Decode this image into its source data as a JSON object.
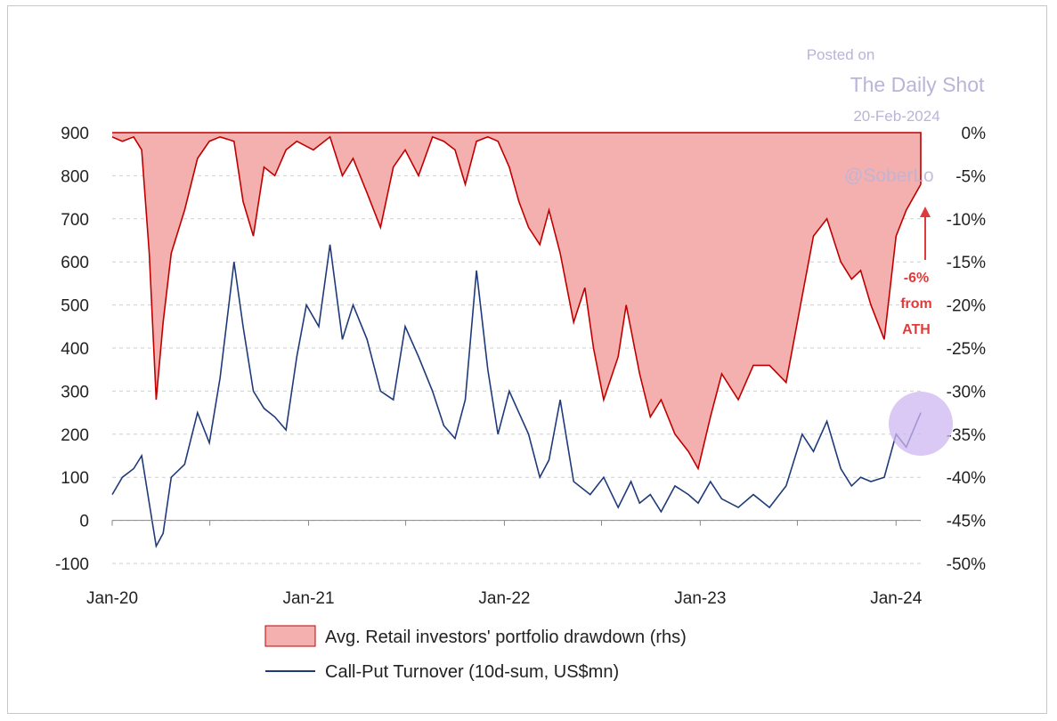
{
  "watermark": {
    "line1": "Posted on",
    "line2": "The Daily Shot",
    "line3": "20-Feb-2024",
    "handle": "@SoberLo"
  },
  "annotation": {
    "line1": "-6%",
    "line2": "from",
    "line3": "ATH"
  },
  "colors": {
    "drawdown_fill": "#f4b0ae",
    "drawdown_line": "#c00000",
    "turnover_line": "#1f3a7a",
    "grid": "#cfcfcf",
    "annotation": "#e03b3b",
    "highlight_circle": "#cdb7f0"
  },
  "chart_data": {
    "type": "line",
    "x_tick_labels": [
      "Jan-20",
      "Jan-21",
      "Jan-22",
      "Jan-23",
      "Jan-24"
    ],
    "x_range": [
      "2020-01-01",
      "2024-02-16"
    ],
    "y_left": {
      "range": [
        -100,
        900
      ],
      "ticks": [
        "900",
        "800",
        "700",
        "600",
        "500",
        "400",
        "300",
        "200",
        "100",
        "0",
        "-100"
      ]
    },
    "y_right": {
      "range": [
        -50,
        0
      ],
      "unit": "%",
      "ticks": [
        "0%",
        "-5%",
        "-10%",
        "-15%",
        "-20%",
        "-25%",
        "-30%",
        "-35%",
        "-40%",
        "-45%",
        "-50%"
      ]
    },
    "series": [
      {
        "name": "Avg. Retail investors' portfolio drawdown (rhs)",
        "kind": "area",
        "axis": "right",
        "x": [
          "2020-01-01",
          "2020-01-20",
          "2020-02-10",
          "2020-02-25",
          "2020-03-10",
          "2020-03-23",
          "2020-04-05",
          "2020-04-20",
          "2020-05-15",
          "2020-06-08",
          "2020-06-30",
          "2020-07-20",
          "2020-08-15",
          "2020-09-01",
          "2020-09-20",
          "2020-10-10",
          "2020-10-30",
          "2020-11-20",
          "2020-12-10",
          "2021-01-10",
          "2021-02-10",
          "2021-03-05",
          "2021-03-25",
          "2021-04-20",
          "2021-05-15",
          "2021-06-08",
          "2021-06-30",
          "2021-07-25",
          "2021-08-20",
          "2021-09-10",
          "2021-10-01",
          "2021-10-20",
          "2021-11-10",
          "2021-12-01",
          "2021-12-20",
          "2022-01-10",
          "2022-01-28",
          "2022-02-15",
          "2022-03-08",
          "2022-03-25",
          "2022-04-15",
          "2022-05-10",
          "2022-05-31",
          "2022-06-16",
          "2022-07-05",
          "2022-08-01",
          "2022-08-16",
          "2022-09-10",
          "2022-09-30",
          "2022-10-20",
          "2022-11-15",
          "2022-12-10",
          "2022-12-28",
          "2023-01-20",
          "2023-02-10",
          "2023-03-13",
          "2023-04-10",
          "2023-05-10",
          "2023-06-10",
          "2023-07-10",
          "2023-07-31",
          "2023-08-25",
          "2023-09-20",
          "2023-10-10",
          "2023-10-27",
          "2023-11-15",
          "2023-12-10",
          "2024-01-01",
          "2024-01-20",
          "2024-02-16"
        ],
        "values": [
          -0.5,
          -1,
          -0.5,
          -2,
          -14,
          -31,
          -22,
          -14,
          -9,
          -3,
          -1,
          -0.5,
          -1,
          -8,
          -12,
          -4,
          -5,
          -2,
          -1,
          -2,
          -0.5,
          -5,
          -3,
          -7,
          -11,
          -4,
          -2,
          -5,
          -0.5,
          -1,
          -2,
          -6,
          -1,
          -0.5,
          -1,
          -4,
          -8,
          -11,
          -13,
          -9,
          -14,
          -22,
          -18,
          -25,
          -31,
          -26,
          -20,
          -28,
          -33,
          -31,
          -35,
          -37,
          -39,
          -33,
          -28,
          -31,
          -27,
          -27,
          -29,
          -19,
          -12,
          -10,
          -15,
          -17,
          -16,
          -20,
          -24,
          -12,
          -9,
          -6
        ]
      },
      {
        "name": "Call-Put Turnover (10d-sum, US$mn)",
        "kind": "line",
        "axis": "left",
        "x": [
          "2020-01-01",
          "2020-01-20",
          "2020-02-10",
          "2020-02-25",
          "2020-03-10",
          "2020-03-23",
          "2020-04-05",
          "2020-04-20",
          "2020-05-15",
          "2020-06-08",
          "2020-06-30",
          "2020-07-20",
          "2020-08-15",
          "2020-09-01",
          "2020-09-20",
          "2020-10-10",
          "2020-10-30",
          "2020-11-20",
          "2020-12-10",
          "2020-12-28",
          "2021-01-20",
          "2021-02-10",
          "2021-03-05",
          "2021-03-25",
          "2021-04-20",
          "2021-05-15",
          "2021-06-08",
          "2021-06-30",
          "2021-07-25",
          "2021-08-20",
          "2021-09-10",
          "2021-10-01",
          "2021-10-20",
          "2021-11-10",
          "2021-12-01",
          "2021-12-20",
          "2022-01-10",
          "2022-01-28",
          "2022-02-15",
          "2022-03-08",
          "2022-03-25",
          "2022-04-15",
          "2022-05-10",
          "2022-06-10",
          "2022-07-05",
          "2022-08-01",
          "2022-08-25",
          "2022-09-10",
          "2022-09-30",
          "2022-10-20",
          "2022-11-15",
          "2022-12-10",
          "2022-12-28",
          "2023-01-20",
          "2023-02-10",
          "2023-03-13",
          "2023-04-10",
          "2023-05-10",
          "2023-06-10",
          "2023-07-10",
          "2023-07-31",
          "2023-08-25",
          "2023-09-20",
          "2023-10-10",
          "2023-10-27",
          "2023-11-15",
          "2023-12-10",
          "2024-01-01",
          "2024-01-20",
          "2024-02-16"
        ],
        "values": [
          60,
          100,
          120,
          150,
          40,
          -60,
          -30,
          100,
          130,
          250,
          180,
          330,
          600,
          450,
          300,
          260,
          240,
          210,
          380,
          500,
          450,
          640,
          420,
          500,
          420,
          300,
          280,
          450,
          380,
          300,
          220,
          190,
          280,
          580,
          350,
          200,
          300,
          250,
          200,
          100,
          140,
          280,
          90,
          60,
          100,
          30,
          90,
          40,
          60,
          20,
          80,
          60,
          40,
          90,
          50,
          30,
          60,
          30,
          80,
          200,
          160,
          230,
          120,
          80,
          100,
          90,
          100,
          200,
          170,
          250
        ]
      }
    ]
  },
  "legend": {
    "area_label": "Avg. Retail investors' portfolio drawdown (rhs)",
    "line_label": "Call-Put Turnover (10d-sum, US$mn)"
  }
}
